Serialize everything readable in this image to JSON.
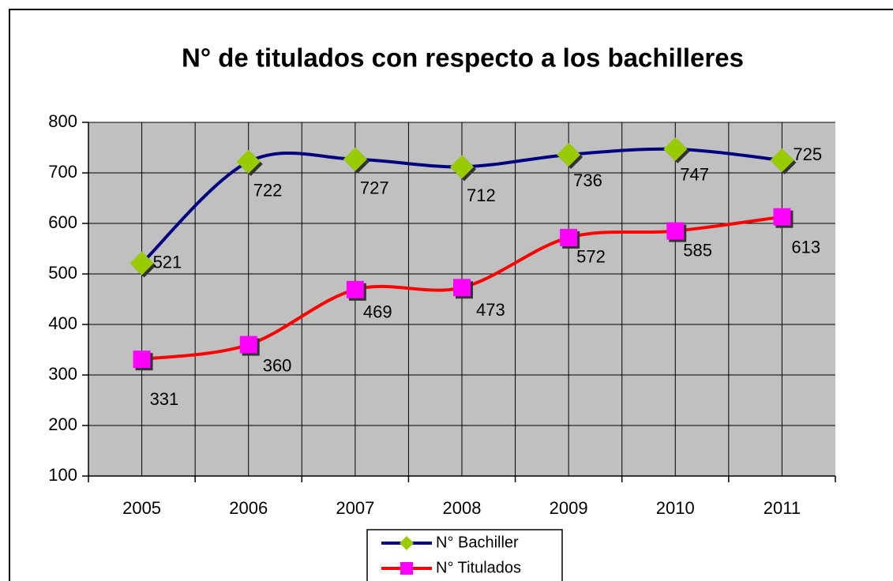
{
  "chart_data": {
    "type": "line",
    "title": "N° de titulados con respecto a los bachilleres",
    "categories": [
      "2005",
      "2006",
      "2007",
      "2008",
      "2009",
      "2010",
      "2011"
    ],
    "series": [
      {
        "name": "N° Bachiller",
        "color": "#000080",
        "marker_color": "#99cc00",
        "marker": "diamond",
        "values": [
          521,
          722,
          727,
          712,
          736,
          747,
          725
        ]
      },
      {
        "name": "N° Titulados",
        "color": "#ff0000",
        "marker_color": "#ff00ff",
        "marker": "square",
        "values": [
          331,
          360,
          469,
          473,
          572,
          585,
          613
        ]
      }
    ],
    "ylim": [
      100,
      800
    ],
    "yticks": [
      100,
      200,
      300,
      400,
      500,
      600,
      700,
      800
    ],
    "grid": true,
    "smooth": true,
    "legend": "bottom"
  }
}
